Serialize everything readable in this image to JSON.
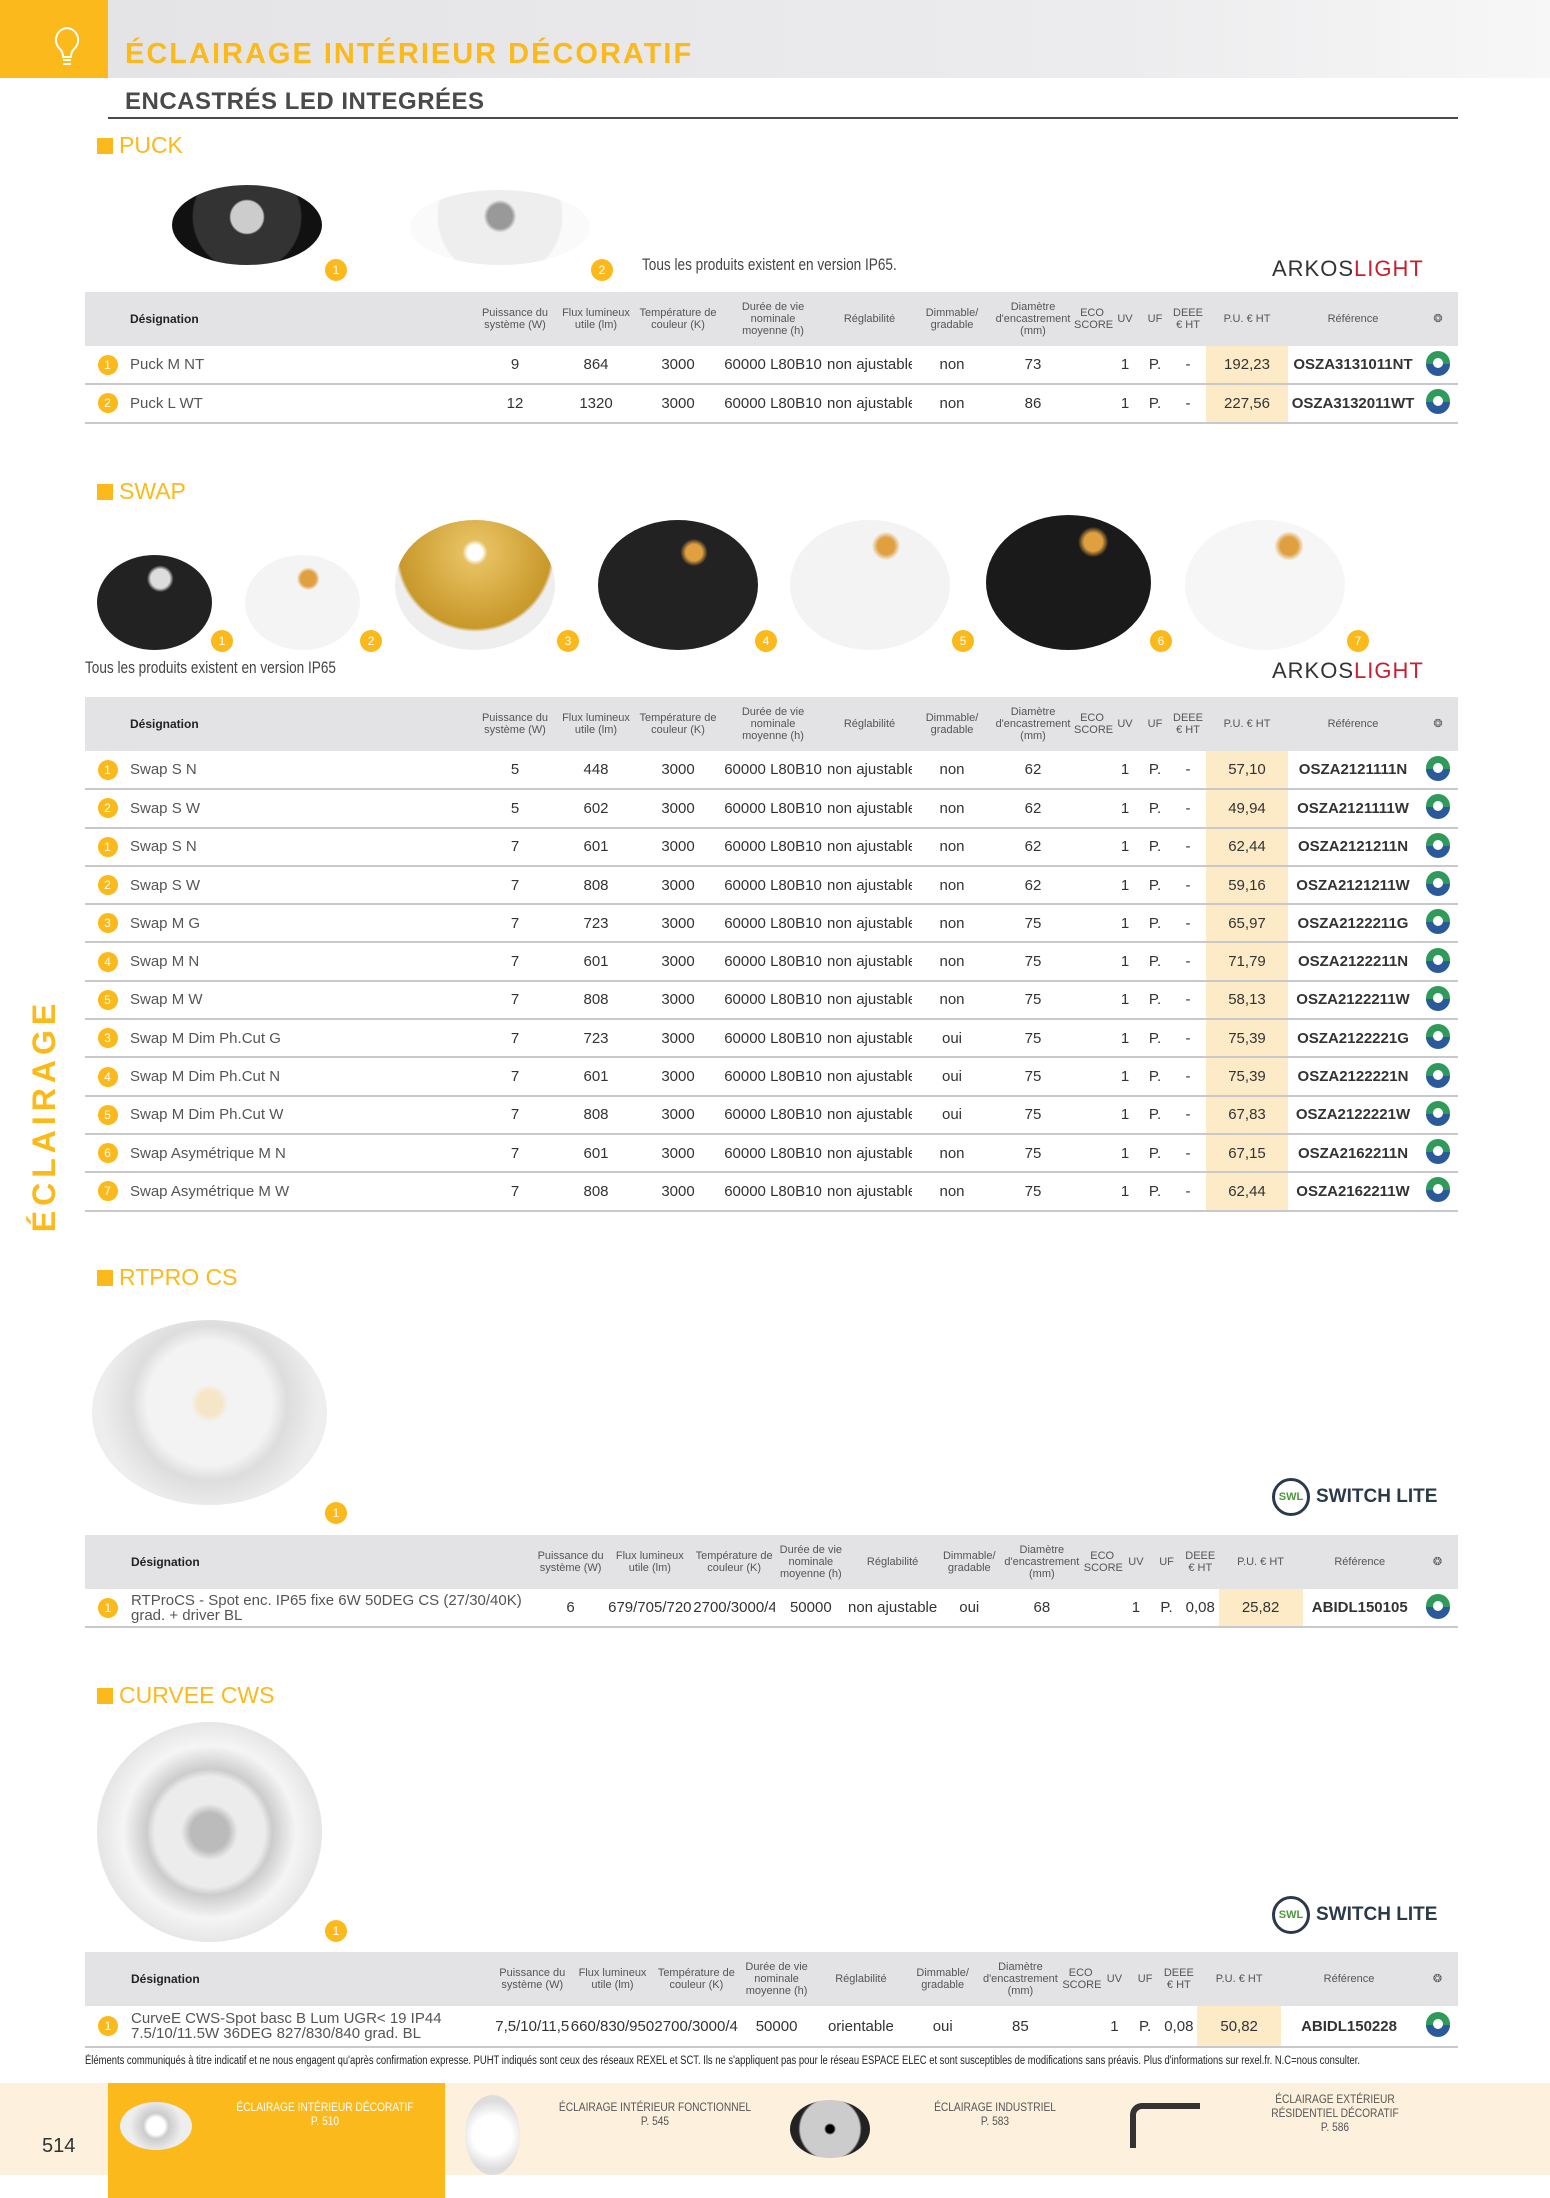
{
  "header": {
    "title": "ÉCLAIRAGE INTÉRIEUR DÉCORATIF",
    "subtitle": "ENCASTRÉS LED INTEGRÉES",
    "icon": "lightbulb-icon",
    "side_label": "ÉCLAIRAGE"
  },
  "colors": {
    "accent": "#fbb91b",
    "header_gray": "#e3e3e5",
    "price_bg": "#fdebc8"
  },
  "columns": [
    "Désignation",
    "Puissance du\nsystème (W)",
    "Flux lumineux\nutile (lm)",
    "Température de\ncouleur (K)",
    "Durée de vie nominale\nmoyenne (h)",
    "Réglabilité",
    "Dimmable/\ngradable",
    "Diamètre\nd'encastrement\n(mm)",
    "ECO\nSCORE",
    "UV",
    "UF",
    "DEEE\n€ HT",
    "P.U. € HT",
    "Référence"
  ],
  "columns_alt": [
    "Désignation",
    "Puissance du\nsystème (W)",
    "Flux lumineux\nutile (lm)",
    "Température de\ncouleur (K)",
    "Durée de vie\nnominale\nmoyenne (h)",
    "Réglabilité",
    "Dimmable/\ngradable",
    "Diamètre\nd'encastrement\n(mm)",
    "ECO\nSCORE",
    "UV",
    "UF",
    "DEEE\n€ HT",
    "P.U. € HT",
    "Référence"
  ],
  "sections": [
    {
      "title": "PUCK",
      "note": "Tous les produits existent en version IP65.",
      "brand": "ARKOSLIGHT",
      "rows": [
        [
          "1",
          "Puck M NT",
          "9",
          "864",
          "3000",
          "60000 L80B10",
          "non ajustable",
          "non",
          "73",
          "",
          "1",
          "P.",
          "-",
          "192,23",
          "OSZA3131011NT"
        ],
        [
          "2",
          "Puck L WT",
          "12",
          "1320",
          "3000",
          "60000 L80B10",
          "non ajustable",
          "non",
          "86",
          "",
          "1",
          "P.",
          "-",
          "227,56",
          "OSZA3132011WT"
        ]
      ]
    },
    {
      "title": "SWAP",
      "note": "Tous les produits existent en version IP65",
      "brand": "ARKOSLIGHT",
      "rows": [
        [
          "1",
          "Swap S N",
          "5",
          "448",
          "3000",
          "60000 L80B10",
          "non ajustable",
          "non",
          "62",
          "",
          "1",
          "P.",
          "-",
          "57,10",
          "OSZA2121111N"
        ],
        [
          "2",
          "Swap S W",
          "5",
          "602",
          "3000",
          "60000 L80B10",
          "non ajustable",
          "non",
          "62",
          "",
          "1",
          "P.",
          "-",
          "49,94",
          "OSZA2121111W"
        ],
        [
          "1",
          "Swap S N",
          "7",
          "601",
          "3000",
          "60000 L80B10",
          "non ajustable",
          "non",
          "62",
          "",
          "1",
          "P.",
          "-",
          "62,44",
          "OSZA2121211N"
        ],
        [
          "2",
          "Swap S W",
          "7",
          "808",
          "3000",
          "60000 L80B10",
          "non ajustable",
          "non",
          "62",
          "",
          "1",
          "P.",
          "-",
          "59,16",
          "OSZA2121211W"
        ],
        [
          "3",
          "Swap M G",
          "7",
          "723",
          "3000",
          "60000 L80B10",
          "non ajustable",
          "non",
          "75",
          "",
          "1",
          "P.",
          "-",
          "65,97",
          "OSZA2122211G"
        ],
        [
          "4",
          "Swap M N",
          "7",
          "601",
          "3000",
          "60000 L80B10",
          "non ajustable",
          "non",
          "75",
          "",
          "1",
          "P.",
          "-",
          "71,79",
          "OSZA2122211N"
        ],
        [
          "5",
          "Swap M W",
          "7",
          "808",
          "3000",
          "60000 L80B10",
          "non ajustable",
          "non",
          "75",
          "",
          "1",
          "P.",
          "-",
          "58,13",
          "OSZA2122211W"
        ],
        [
          "3",
          "Swap M Dim Ph.Cut G",
          "7",
          "723",
          "3000",
          "60000 L80B10",
          "non ajustable",
          "oui",
          "75",
          "",
          "1",
          "P.",
          "-",
          "75,39",
          "OSZA2122221G"
        ],
        [
          "4",
          "Swap M Dim Ph.Cut N",
          "7",
          "601",
          "3000",
          "60000 L80B10",
          "non ajustable",
          "oui",
          "75",
          "",
          "1",
          "P.",
          "-",
          "75,39",
          "OSZA2122221N"
        ],
        [
          "5",
          "Swap M Dim Ph.Cut W",
          "7",
          "808",
          "3000",
          "60000 L80B10",
          "non ajustable",
          "oui",
          "75",
          "",
          "1",
          "P.",
          "-",
          "67,83",
          "OSZA2122221W"
        ],
        [
          "6",
          "Swap Asymétrique M N",
          "7",
          "601",
          "3000",
          "60000 L80B10",
          "non ajustable",
          "non",
          "75",
          "",
          "1",
          "P.",
          "-",
          "67,15",
          "OSZA2162211N"
        ],
        [
          "7",
          "Swap Asymétrique M W",
          "7",
          "808",
          "3000",
          "60000 L80B10",
          "non ajustable",
          "non",
          "75",
          "",
          "1",
          "P.",
          "-",
          "62,44",
          "OSZA2162211W"
        ]
      ]
    },
    {
      "title": "RTPRO CS",
      "brand": "SWITCH LITE",
      "rows": [
        [
          "1",
          "RTProCS - Spot enc. IP65 fixe 6W 50DEG CS (27/30/40K) grad. + driver BL",
          "6",
          "679/705/720",
          "2700/3000/4000",
          "50000",
          "non ajustable",
          "oui",
          "68",
          "",
          "1",
          "P.",
          "0,08",
          "25,82",
          "ABIDL150105"
        ]
      ]
    },
    {
      "title": "CURVEE CWS",
      "brand": "SWITCH LITE",
      "rows": [
        [
          "1",
          "CurveE CWS-Spot basc B Lum UGR< 19 IP44 7.5/10/11.5W 36DEG 827/830/840 grad. BL",
          "7,5/10/11,5",
          "660/830/950",
          "2700/3000/4000",
          "50000",
          "orientable",
          "oui",
          "85",
          "",
          "1",
          "P.",
          "0,08",
          "50,82",
          "ABIDL150228"
        ]
      ]
    }
  ],
  "footnote": "Éléments communiqués à titre indicatif et ne nous engagent qu'après confirmation expresse. PUHT indiqués sont ceux des réseaux REXEL et SCT. Ils ne s'appliquent pas pour le réseau ESPACE ELEC et sont susceptibles de modifications sans préavis. Plus d'informations sur rexel.fr. N.C=nous consulter.",
  "footer": {
    "page_number": "514",
    "nav": [
      {
        "label": "ÉCLAIRAGE INTÉRIEUR DÉCORATIF\nP. 510",
        "active": true
      },
      {
        "label": "ÉCLAIRAGE INTÉRIEUR FONCTIONNEL\nP. 545"
      },
      {
        "label": "ÉCLAIRAGE INDUSTRIEL\nP. 583"
      },
      {
        "label": "ÉCLAIRAGE EXTÉRIEUR\nRÉSIDENTIEL DÉCORATIF\nP. 586"
      }
    ]
  }
}
